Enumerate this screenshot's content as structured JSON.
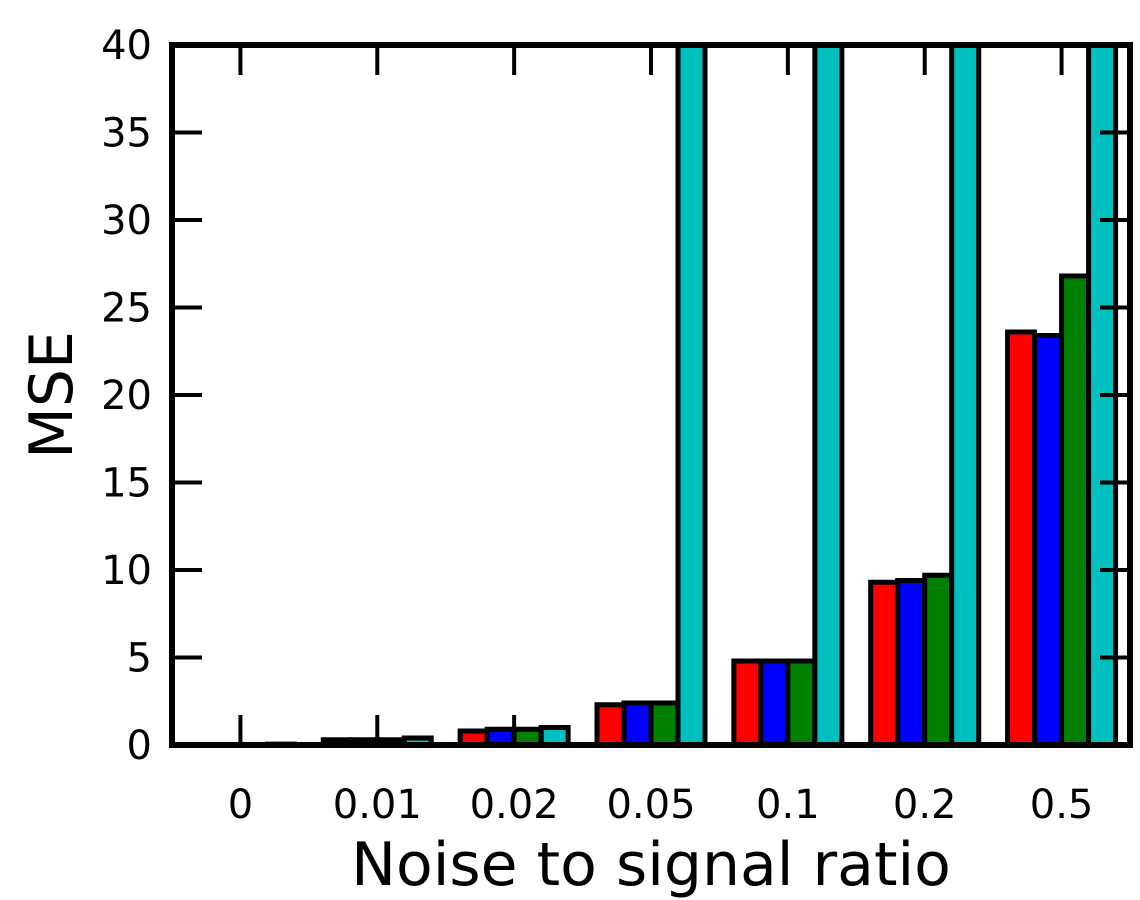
{
  "chart_data": {
    "type": "bar",
    "title": "",
    "xlabel": "Noise to signal ratio",
    "ylabel": "MSE",
    "categories": [
      "0",
      "0.01",
      "0.02",
      "0.05",
      "0.1",
      "0.2",
      "0.5"
    ],
    "ylim": [
      0,
      40
    ],
    "yticks": [
      "0",
      "5",
      "10",
      "15",
      "20",
      "25",
      "30",
      "35",
      "40"
    ],
    "grid": false,
    "legend": "none",
    "series": [
      {
        "color": "#ff0000",
        "values": [
          0.0,
          0.3,
          0.8,
          2.3,
          4.8,
          9.3,
          23.6
        ]
      },
      {
        "color": "#0000ff",
        "values": [
          0.0,
          0.3,
          0.9,
          2.4,
          4.8,
          9.4,
          23.4
        ]
      },
      {
        "color": "#008000",
        "values": [
          0.0,
          0.3,
          0.9,
          2.4,
          4.8,
          9.7,
          26.8
        ]
      },
      {
        "color": "#00bfbf",
        "values": [
          0.05,
          0.4,
          1.0,
          40,
          40,
          40,
          40
        ]
      }
    ]
  }
}
